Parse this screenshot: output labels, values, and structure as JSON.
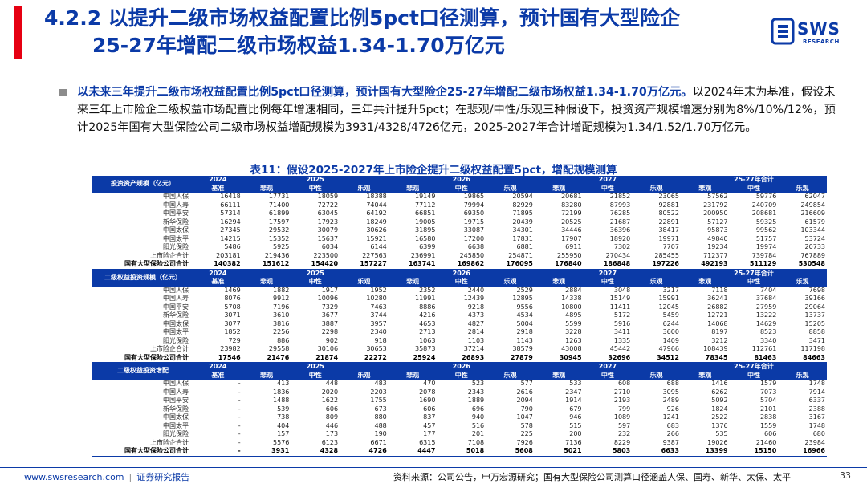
{
  "header": {
    "title_line1": "4.2.2 以提升二级市场权益配置比例5pct口径测算，预计国有大型险企",
    "title_line2": "25-27年增配二级市场权益1.34-1.70万亿元",
    "logo_text": "SWS",
    "logo_sub": "RESEARCH"
  },
  "body": {
    "bold_text": "以未来三年提升二级市场权益配置比例5pct口径测算，预计国有大型险企25-27年增配二级市场权益1.34-1.70万亿元。",
    "normal_text": "以2024年末为基准，假设未来三年上市险企二级权益市场配置比例每年增速相同，三年共计提升5pct；在悲观/中性/乐观三种假设下，投资资产规模增速分别为8%/10%/12%，预计2025年国有大型保险公司二级市场权益增配规模为3931/4328/4726亿元，2025-2027年合计增配规模为1.34/1.52/1.70万亿元。",
    "table_title": "表11：假设2025-2027年上市险企提升二级权益配置5pct，增配规模测算"
  },
  "table": {
    "sections": [
      {
        "name": "投资资产规模（亿元）",
        "years": [
          "2024",
          "2025",
          "2026",
          "2027",
          "25-27年合计"
        ],
        "cases": [
          "基准",
          "悲观",
          "中性",
          "乐观",
          "悲观",
          "中性",
          "乐观",
          "悲观",
          "中性",
          "乐观",
          "悲观",
          "中性",
          "乐观"
        ],
        "rows": [
          {
            "name": "中国人保",
            "values": [
              "16418",
              "17731",
              "18059",
              "18388",
              "19149",
              "19865",
              "20594",
              "20681",
              "21852",
              "23065",
              "57562",
              "59776",
              "62047"
            ]
          },
          {
            "name": "中国人寿",
            "values": [
              "66111",
              "71400",
              "72722",
              "74044",
              "77112",
              "79994",
              "82929",
              "83280",
              "87993",
              "92881",
              "231792",
              "240709",
              "249854"
            ]
          },
          {
            "name": "中国平安",
            "values": [
              "57314",
              "61899",
              "63045",
              "64192",
              "66851",
              "69350",
              "71895",
              "72199",
              "76285",
              "80522",
              "200950",
              "208681",
              "216609"
            ]
          },
          {
            "name": "新华保险",
            "values": [
              "16294",
              "17597",
              "17923",
              "18249",
              "19005",
              "19715",
              "20439",
              "20525",
              "21687",
              "22891",
              "57127",
              "59325",
              "61579"
            ]
          },
          {
            "name": "中国太保",
            "values": [
              "27345",
              "29532",
              "30079",
              "30626",
              "31895",
              "33087",
              "34301",
              "34446",
              "36396",
              "38417",
              "95873",
              "99562",
              "103344"
            ]
          },
          {
            "name": "中国太平",
            "values": [
              "14215",
              "15352",
              "15637",
              "15921",
              "16580",
              "17200",
              "17831",
              "17907",
              "18920",
              "19971",
              "49840",
              "51757",
              "53724"
            ]
          },
          {
            "name": "阳光保险",
            "values": [
              "5486",
              "5925",
              "6034",
              "6144",
              "6399",
              "6638",
              "6881",
              "6911",
              "7302",
              "7707",
              "19234",
              "19974",
              "20733"
            ]
          },
          {
            "name": "上市险企合计",
            "values": [
              "203181",
              "219436",
              "223500",
              "227563",
              "236991",
              "245850",
              "254871",
              "255950",
              "270434",
              "285455",
              "712377",
              "739784",
              "767889"
            ]
          },
          {
            "name": "国有大型保险公司合计",
            "total": true,
            "values": [
              "140382",
              "151612",
              "154420",
              "157227",
              "163741",
              "169862",
              "176095",
              "176840",
              "186848",
              "197226",
              "492193",
              "511129",
              "530548"
            ]
          }
        ]
      },
      {
        "name": "二级权益投资规模（亿元）",
        "years": [
          "2024",
          "2025",
          "2026",
          "2027",
          "25-27年合计"
        ],
        "cases": [
          "基准",
          "悲观",
          "中性",
          "乐观",
          "悲观",
          "中性",
          "乐观",
          "悲观",
          "中性",
          "乐观",
          "悲观",
          "中性",
          "乐观"
        ],
        "rows": [
          {
            "name": "中国人保",
            "values": [
              "1469",
              "1882",
              "1917",
              "1952",
              "2352",
              "2440",
              "2529",
              "2884",
              "3048",
              "3217",
              "7118",
              "7404",
              "7698"
            ]
          },
          {
            "name": "中国人寿",
            "values": [
              "8076",
              "9912",
              "10096",
              "10280",
              "11991",
              "12439",
              "12895",
              "14338",
              "15149",
              "15991",
              "36241",
              "37684",
              "39166"
            ]
          },
          {
            "name": "中国平安",
            "values": [
              "5708",
              "7196",
              "7329",
              "7463",
              "8886",
              "9218",
              "9556",
              "10800",
              "11411",
              "12045",
              "26882",
              "27959",
              "29064"
            ]
          },
          {
            "name": "新华保险",
            "values": [
              "3071",
              "3610",
              "3677",
              "3744",
              "4216",
              "4373",
              "4534",
              "4895",
              "5172",
              "5459",
              "12721",
              "13222",
              "13737"
            ]
          },
          {
            "name": "中国太保",
            "values": [
              "3077",
              "3816",
              "3887",
              "3957",
              "4653",
              "4827",
              "5004",
              "5599",
              "5916",
              "6244",
              "14068",
              "14629",
              "15205"
            ]
          },
          {
            "name": "中国太平",
            "values": [
              "1852",
              "2256",
              "2298",
              "2340",
              "2713",
              "2814",
              "2918",
              "3228",
              "3411",
              "3600",
              "8197",
              "8523",
              "8858"
            ]
          },
          {
            "name": "阳光保险",
            "values": [
              "729",
              "886",
              "902",
              "918",
              "1063",
              "1103",
              "1143",
              "1263",
              "1335",
              "1409",
              "3212",
              "3340",
              "3471"
            ]
          },
          {
            "name": "上市险企合计",
            "values": [
              "23982",
              "29558",
              "30106",
              "30653",
              "35873",
              "37214",
              "38579",
              "43008",
              "45442",
              "47966",
              "108439",
              "112761",
              "117198"
            ]
          },
          {
            "name": "国有大型保险公司合计",
            "total": true,
            "values": [
              "17546",
              "21476",
              "21874",
              "22272",
              "25924",
              "26893",
              "27879",
              "30945",
              "32696",
              "34512",
              "78345",
              "81463",
              "84663"
            ]
          }
        ]
      },
      {
        "name": "二级权益投资增配",
        "years": [
          "2024",
          "2025",
          "2026",
          "2027",
          "25-27年合计"
        ],
        "cases": [
          "基准",
          "悲观",
          "中性",
          "乐观",
          "悲观",
          "中性",
          "乐观",
          "悲观",
          "中性",
          "乐观",
          "悲观",
          "中性",
          "乐观"
        ],
        "rows": [
          {
            "name": "中国人保",
            "values": [
              "-",
              "413",
              "448",
              "483",
              "470",
              "523",
              "577",
              "533",
              "608",
              "688",
              "1416",
              "1579",
              "1748"
            ]
          },
          {
            "name": "中国人寿",
            "values": [
              "-",
              "1836",
              "2020",
              "2203",
              "2078",
              "2343",
              "2616",
              "2347",
              "2710",
              "3095",
              "6262",
              "7073",
              "7914"
            ]
          },
          {
            "name": "中国平安",
            "values": [
              "-",
              "1488",
              "1622",
              "1755",
              "1690",
              "1889",
              "2094",
              "1914",
              "2193",
              "2489",
              "5092",
              "5704",
              "6337"
            ]
          },
          {
            "name": "新华保险",
            "values": [
              "-",
              "539",
              "606",
              "673",
              "606",
              "696",
              "790",
              "679",
              "799",
              "926",
              "1824",
              "2101",
              "2388"
            ]
          },
          {
            "name": "中国太保",
            "values": [
              "-",
              "738",
              "809",
              "880",
              "837",
              "940",
              "1047",
              "946",
              "1089",
              "1241",
              "2522",
              "2838",
              "3167"
            ]
          },
          {
            "name": "中国太平",
            "values": [
              "-",
              "404",
              "446",
              "488",
              "457",
              "516",
              "578",
              "515",
              "597",
              "683",
              "1376",
              "1559",
              "1748"
            ]
          },
          {
            "name": "阳光保险",
            "values": [
              "-",
              "157",
              "173",
              "190",
              "177",
              "201",
              "225",
              "200",
              "232",
              "266",
              "535",
              "606",
              "680"
            ]
          },
          {
            "name": "上市险企合计",
            "values": [
              "-",
              "5576",
              "6123",
              "6671",
              "6315",
              "7108",
              "7926",
              "7136",
              "8229",
              "9387",
              "19026",
              "21460",
              "23984"
            ]
          },
          {
            "name": "国有大型保险公司合计",
            "total": true,
            "values": [
              "-",
              "3931",
              "4328",
              "4726",
              "4447",
              "5018",
              "5608",
              "5021",
              "5803",
              "6633",
              "13399",
              "15150",
              "16966"
            ]
          }
        ]
      }
    ]
  },
  "footer": {
    "url": "www.swsresearch.com",
    "label": "证券研究报告",
    "source": "资料来源：公司公告，申万宏源研究；国有大型保险公司测算口径涵盖人保、国寿、新华、太保、太平",
    "page": "33"
  }
}
